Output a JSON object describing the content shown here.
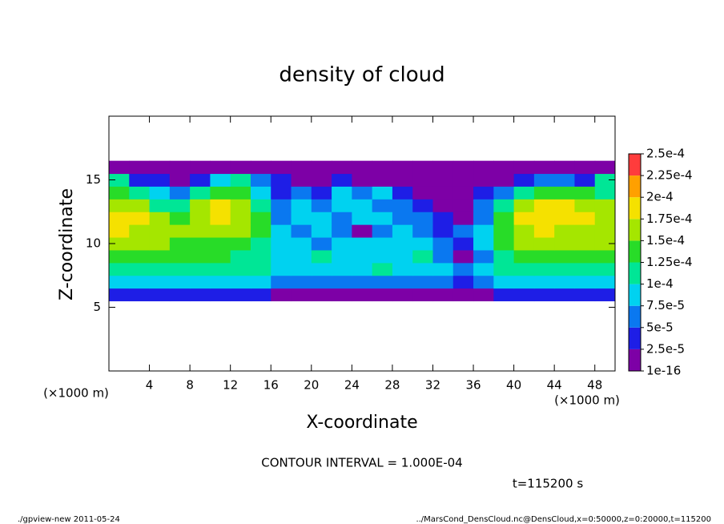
{
  "chart_data": {
    "type": "heatmap",
    "title": "density of cloud",
    "xlabel": "X-coordinate",
    "ylabel": "Z-coordinate",
    "x_unit": "(×1000 m)",
    "note": "CONTOUR INTERVAL = 1.000E-04",
    "time_label": "t=115200 s",
    "footer_left": "./gpview-new  2011-05-24",
    "footer_right": "../MarsCond_DensCloud.nc@DensCloud,x=0:50000,z=0:20000,t=115200",
    "xlim": [
      0,
      50
    ],
    "ylim": [
      0,
      20
    ],
    "xticks": [
      4,
      8,
      12,
      16,
      20,
      24,
      28,
      32,
      36,
      40,
      44,
      48
    ],
    "yticks": [
      5,
      10,
      15
    ],
    "x": [
      1,
      3,
      5,
      7,
      9,
      11,
      13,
      15,
      17,
      19,
      21,
      23,
      25,
      27,
      29,
      31,
      33,
      35,
      37,
      39,
      41,
      43,
      45,
      47,
      49
    ],
    "z": [
      6,
      7,
      8,
      9,
      10,
      11,
      12,
      13,
      14,
      15,
      16
    ],
    "levels": [
      {
        "value": 1e-16,
        "label": "1e-16"
      },
      {
        "value": 2.5e-05,
        "label": "2.5e-5"
      },
      {
        "value": 5e-05,
        "label": "5e-5"
      },
      {
        "value": 7.5e-05,
        "label": "7.5e-5"
      },
      {
        "value": 0.0001,
        "label": "1e-4"
      },
      {
        "value": 0.000125,
        "label": "1.25e-4"
      },
      {
        "value": 0.00015,
        "label": "1.5e-4"
      },
      {
        "value": 0.000175,
        "label": "1.75e-4"
      },
      {
        "value": 0.0002,
        "label": "2e-4"
      },
      {
        "value": 0.000225,
        "label": "2.25e-4"
      },
      {
        "value": 0.00025,
        "label": "2.5e-4"
      }
    ],
    "colors": [
      "#7d00a6",
      "#1e1ee6",
      "#0a78f0",
      "#00d2f0",
      "#00e696",
      "#28dc28",
      "#a5e600",
      "#f5e100",
      "#ffa000",
      "#ff3c3c"
    ],
    "values": [
      [
        3.5e-05,
        3.5e-05,
        3.5e-05,
        3.5e-05,
        3.5e-05,
        3.5e-05,
        3.5e-05,
        3.5e-05,
        1e-05,
        1e-05,
        1e-05,
        1e-05,
        1e-05,
        1e-05,
        1e-05,
        1e-05,
        1e-05,
        1e-05,
        1e-05,
        3.5e-05,
        3.5e-05,
        3.5e-05,
        3.5e-05,
        3.5e-05,
        3.5e-05
      ],
      [
        8.5e-05,
        8.5e-05,
        8.5e-05,
        8.5e-05,
        8.5e-05,
        8.5e-05,
        8.5e-05,
        8.5e-05,
        6e-05,
        6e-05,
        6e-05,
        6e-05,
        6e-05,
        6e-05,
        6e-05,
        6e-05,
        6e-05,
        3.5e-05,
        6e-05,
        8.5e-05,
        8.5e-05,
        8.5e-05,
        8.5e-05,
        8.5e-05,
        8.5e-05
      ],
      [
        0.00012,
        0.00012,
        0.00012,
        0.00011,
        0.00011,
        0.00011,
        0.00011,
        0.00011,
        8.5e-05,
        8.5e-05,
        8.5e-05,
        8.5e-05,
        8.5e-05,
        0.00011,
        8.5e-05,
        8.5e-05,
        8.5e-05,
        6e-05,
        8.5e-05,
        0.00011,
        0.00012,
        0.00012,
        0.00012,
        0.00012,
        0.00012
      ],
      [
        0.000145,
        0.000145,
        0.000145,
        0.000145,
        0.000145,
        0.000145,
        0.00012,
        0.00011,
        8.5e-05,
        8.5e-05,
        0.00011,
        8.5e-05,
        8.5e-05,
        8.5e-05,
        8.5e-05,
        0.00011,
        6e-05,
        1e-05,
        6e-05,
        0.00012,
        0.000145,
        0.000145,
        0.000145,
        0.000145,
        0.000145
      ],
      [
        0.00016,
        0.00016,
        0.00016,
        0.000145,
        0.000145,
        0.000145,
        0.000145,
        0.00012,
        8.5e-05,
        8.5e-05,
        6e-05,
        8.5e-05,
        8.5e-05,
        8.5e-05,
        8.5e-05,
        8.5e-05,
        6e-05,
        3.5e-05,
        8.5e-05,
        0.000145,
        0.00016,
        0.00016,
        0.00016,
        0.00016,
        0.00016
      ],
      [
        0.000185,
        0.00016,
        0.00016,
        0.00016,
        0.00016,
        0.00016,
        0.00016,
        0.000145,
        8.5e-05,
        6e-05,
        8.5e-05,
        6e-05,
        1e-05,
        6e-05,
        8.5e-05,
        6e-05,
        3.5e-05,
        6e-05,
        8.5e-05,
        0.000145,
        0.00016,
        0.000185,
        0.00016,
        0.00016,
        0.00016
      ],
      [
        0.000185,
        0.000185,
        0.00016,
        0.000145,
        0.00016,
        0.000185,
        0.00016,
        0.000145,
        6e-05,
        8.5e-05,
        8.5e-05,
        6e-05,
        8.5e-05,
        8.5e-05,
        6e-05,
        6e-05,
        3.5e-05,
        1e-05,
        6e-05,
        0.000145,
        0.000185,
        0.000185,
        0.000185,
        0.000185,
        0.00016
      ],
      [
        0.00016,
        0.00016,
        0.00012,
        0.00011,
        0.00016,
        0.000185,
        0.00016,
        0.00011,
        6e-05,
        8.5e-05,
        6e-05,
        8.5e-05,
        8.5e-05,
        6e-05,
        6e-05,
        3.5e-05,
        1e-05,
        1e-05,
        6e-05,
        0.00012,
        0.00016,
        0.000185,
        0.000185,
        0.00016,
        0.00016
      ],
      [
        0.000145,
        0.00012,
        8.5e-05,
        6e-05,
        0.00011,
        0.000145,
        0.000145,
        8.5e-05,
        3.5e-05,
        6e-05,
        3.5e-05,
        8.5e-05,
        6e-05,
        8.5e-05,
        3.5e-05,
        1e-05,
        1e-05,
        1e-05,
        3.5e-05,
        6e-05,
        0.00012,
        0.000145,
        0.000145,
        0.000145,
        0.00012
      ],
      [
        0.00011,
        4e-05,
        3e-05,
        1e-05,
        3e-05,
        8.5e-05,
        0.00011,
        6e-05,
        3e-05,
        1e-05,
        1e-05,
        3e-05,
        1e-05,
        1e-05,
        1e-05,
        1e-05,
        1e-05,
        1e-05,
        1e-05,
        1e-05,
        3e-05,
        6e-05,
        6e-05,
        3e-05,
        0.00011
      ],
      [
        1e-05,
        1e-05,
        1e-05,
        1e-05,
        1e-05,
        1e-05,
        1e-05,
        1e-05,
        1e-05,
        1e-05,
        1e-05,
        1e-05,
        1e-05,
        1e-05,
        1e-05,
        1e-05,
        1e-05,
        1e-05,
        1e-05,
        1e-05,
        1e-05,
        1e-05,
        1e-05,
        1e-05,
        1e-05
      ]
    ]
  }
}
